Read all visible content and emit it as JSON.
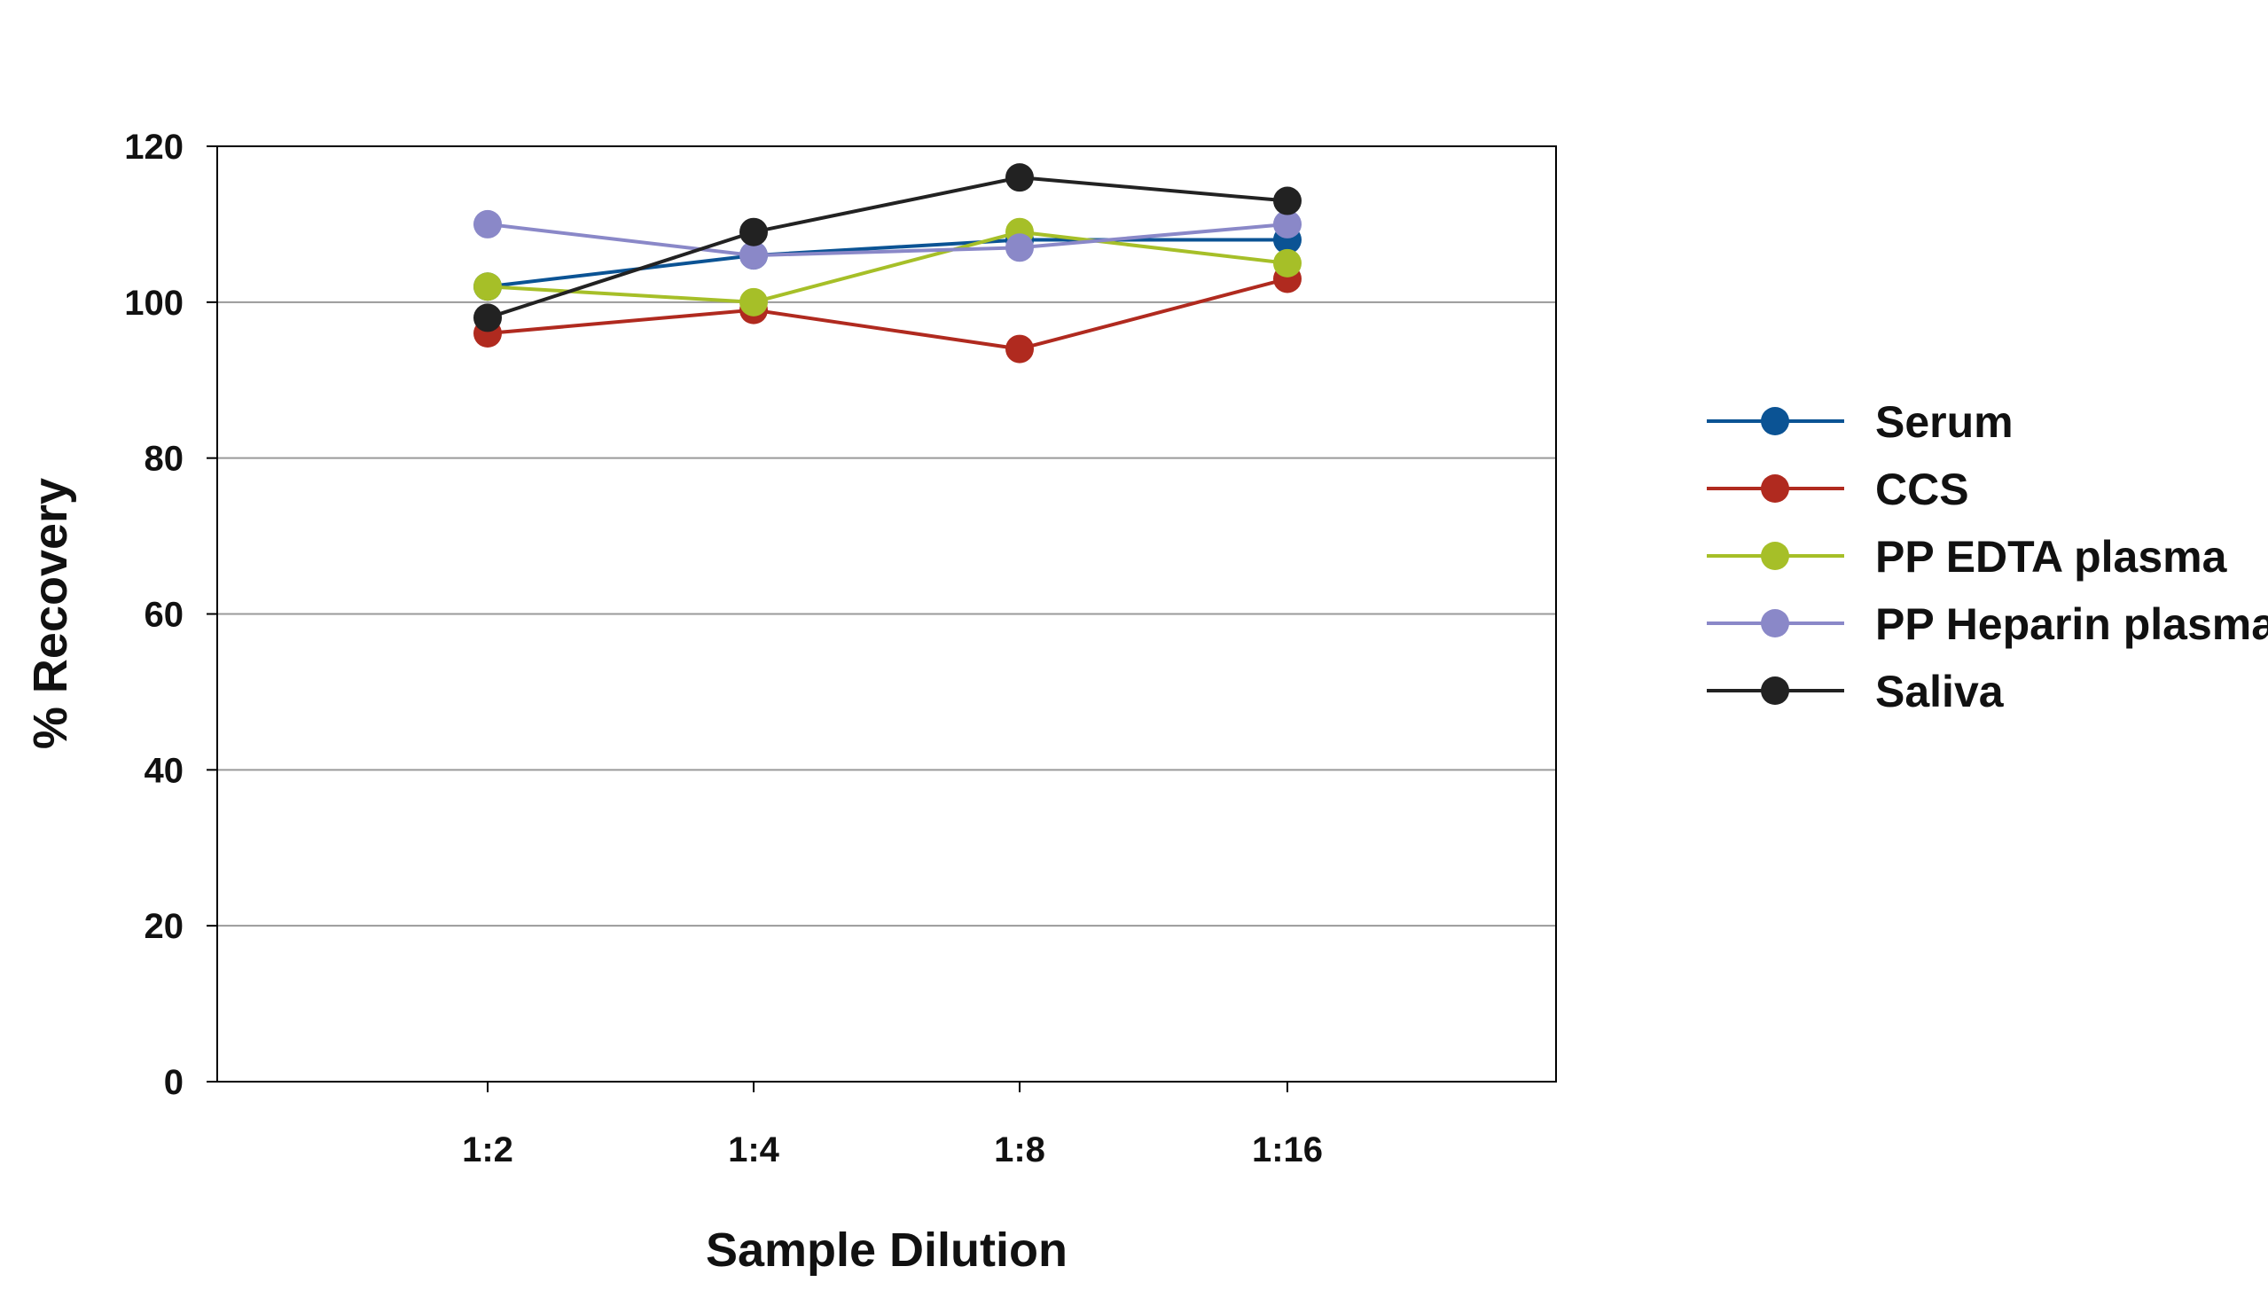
{
  "chart_data": {
    "type": "line",
    "xlabel": "Sample Dilution",
    "ylabel": "% Recovery",
    "categories": [
      "1:2",
      "1:4",
      "1:8",
      "1:16"
    ],
    "ylim": [
      0,
      120
    ],
    "yticks": [
      0,
      20,
      40,
      60,
      80,
      100,
      120
    ],
    "grid": true,
    "legend_position": "right",
    "series": [
      {
        "name": "Serum",
        "color": "#0b5394",
        "values": [
          102,
          106,
          108,
          108
        ]
      },
      {
        "name": "CCS",
        "color": "#b02a1f",
        "values": [
          96,
          99,
          94,
          103
        ]
      },
      {
        "name": "PP EDTA plasma",
        "color": "#a6bf28",
        "values": [
          102,
          100,
          109,
          105
        ]
      },
      {
        "name": "PP Heparin plasma",
        "color": "#8a88c8",
        "values": [
          110,
          106,
          107,
          110
        ]
      },
      {
        "name": "Saliva",
        "color": "#222222",
        "values": [
          98,
          109,
          116,
          113
        ]
      }
    ]
  }
}
